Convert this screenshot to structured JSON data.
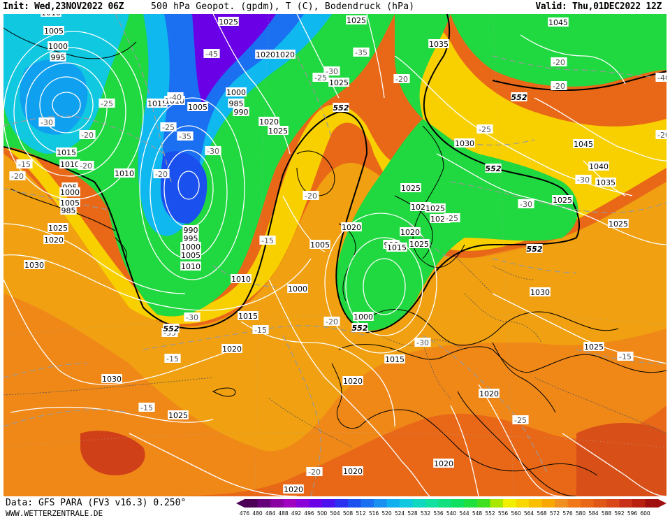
{
  "header": {
    "init": "Init: Wed,23NOV2022 06Z",
    "title": "500 hPa Geopot. (gpdm), T (C), Bodendruck (hPa)",
    "valid": "Valid: Thu,01DEC2022 12Z"
  },
  "footer": {
    "source": "Data: GFS PARA (FV3 v16.3) 0.250°",
    "website": "WWW.WETTERZENTRALE.DE"
  },
  "colorbar": {
    "values": [
      "476",
      "480",
      "484",
      "488",
      "492",
      "496",
      "500",
      "504",
      "508",
      "512",
      "516",
      "520",
      "524",
      "528",
      "532",
      "536",
      "540",
      "544",
      "548",
      "552",
      "556",
      "560",
      "564",
      "568",
      "572",
      "576",
      "580",
      "584",
      "588",
      "592",
      "596",
      "600"
    ],
    "colors": [
      "#4b0055",
      "#66007a",
      "#8a00a0",
      "#a000c0",
      "#8a00d8",
      "#6a00e6",
      "#4a10ee",
      "#2a30f0",
      "#1a50ee",
      "#1a70f0",
      "#1a90f0",
      "#10b0f0",
      "#10c8e0",
      "#10d8c0",
      "#10e0a0",
      "#10e080",
      "#10e060",
      "#20e040",
      "#40e020",
      "#a8e800",
      "#f0f000",
      "#f8d800",
      "#f8c000",
      "#f8a800",
      "#f09020",
      "#f07818",
      "#e86818",
      "#e05818",
      "#d84818",
      "#c83018",
      "#b82010",
      "#a01010"
    ]
  },
  "map_layers": {
    "height_fill": "500 hPa geopotential (gpdm)",
    "isobars": "Bodendruck (hPa)",
    "isotherms": "T (C)"
  },
  "pressure_labels": [
    "1010",
    "1005",
    "1000",
    "995",
    "985",
    "990",
    "995",
    "1000",
    "1005",
    "1010",
    "1020",
    "1025",
    "1015",
    "1025",
    "1020",
    "1020",
    "1025",
    "1025",
    "1010",
    "1005",
    "1000",
    "985",
    "990",
    "995",
    "1000",
    "1005",
    "1010",
    "1015",
    "1010",
    "1000",
    "990",
    "1020",
    "1025",
    "1025",
    "1020",
    "1025",
    "1015",
    "1010",
    "1005",
    "1000",
    "1030",
    "1025",
    "1020",
    "1030",
    "1025",
    "1015",
    "1020",
    "1020",
    "1020",
    "1020",
    "1020",
    "1015",
    "1020",
    "1045",
    "1035",
    "1045",
    "1040",
    "1035",
    "1025",
    "1025",
    "1030",
    "1025",
    "1030",
    "1025",
    "1020"
  ],
  "temp_labels": [
    "-30",
    "-25",
    "-20",
    "-15",
    "-20",
    "-25",
    "-35",
    "-40",
    "-45",
    "-35",
    "-30",
    "-25",
    "-30",
    "-20",
    "-20",
    "-15",
    "-15",
    "-20",
    "-30",
    "-35",
    "-30",
    "-25",
    "-25",
    "-30",
    "-25",
    "-20",
    "-20",
    "-30",
    "-40",
    "-20",
    "-15",
    "-20",
    "-15",
    "-15",
    "-20",
    "-20"
  ],
  "height_labels": [
    "552",
    "552",
    "552",
    "552",
    "552",
    "552"
  ]
}
